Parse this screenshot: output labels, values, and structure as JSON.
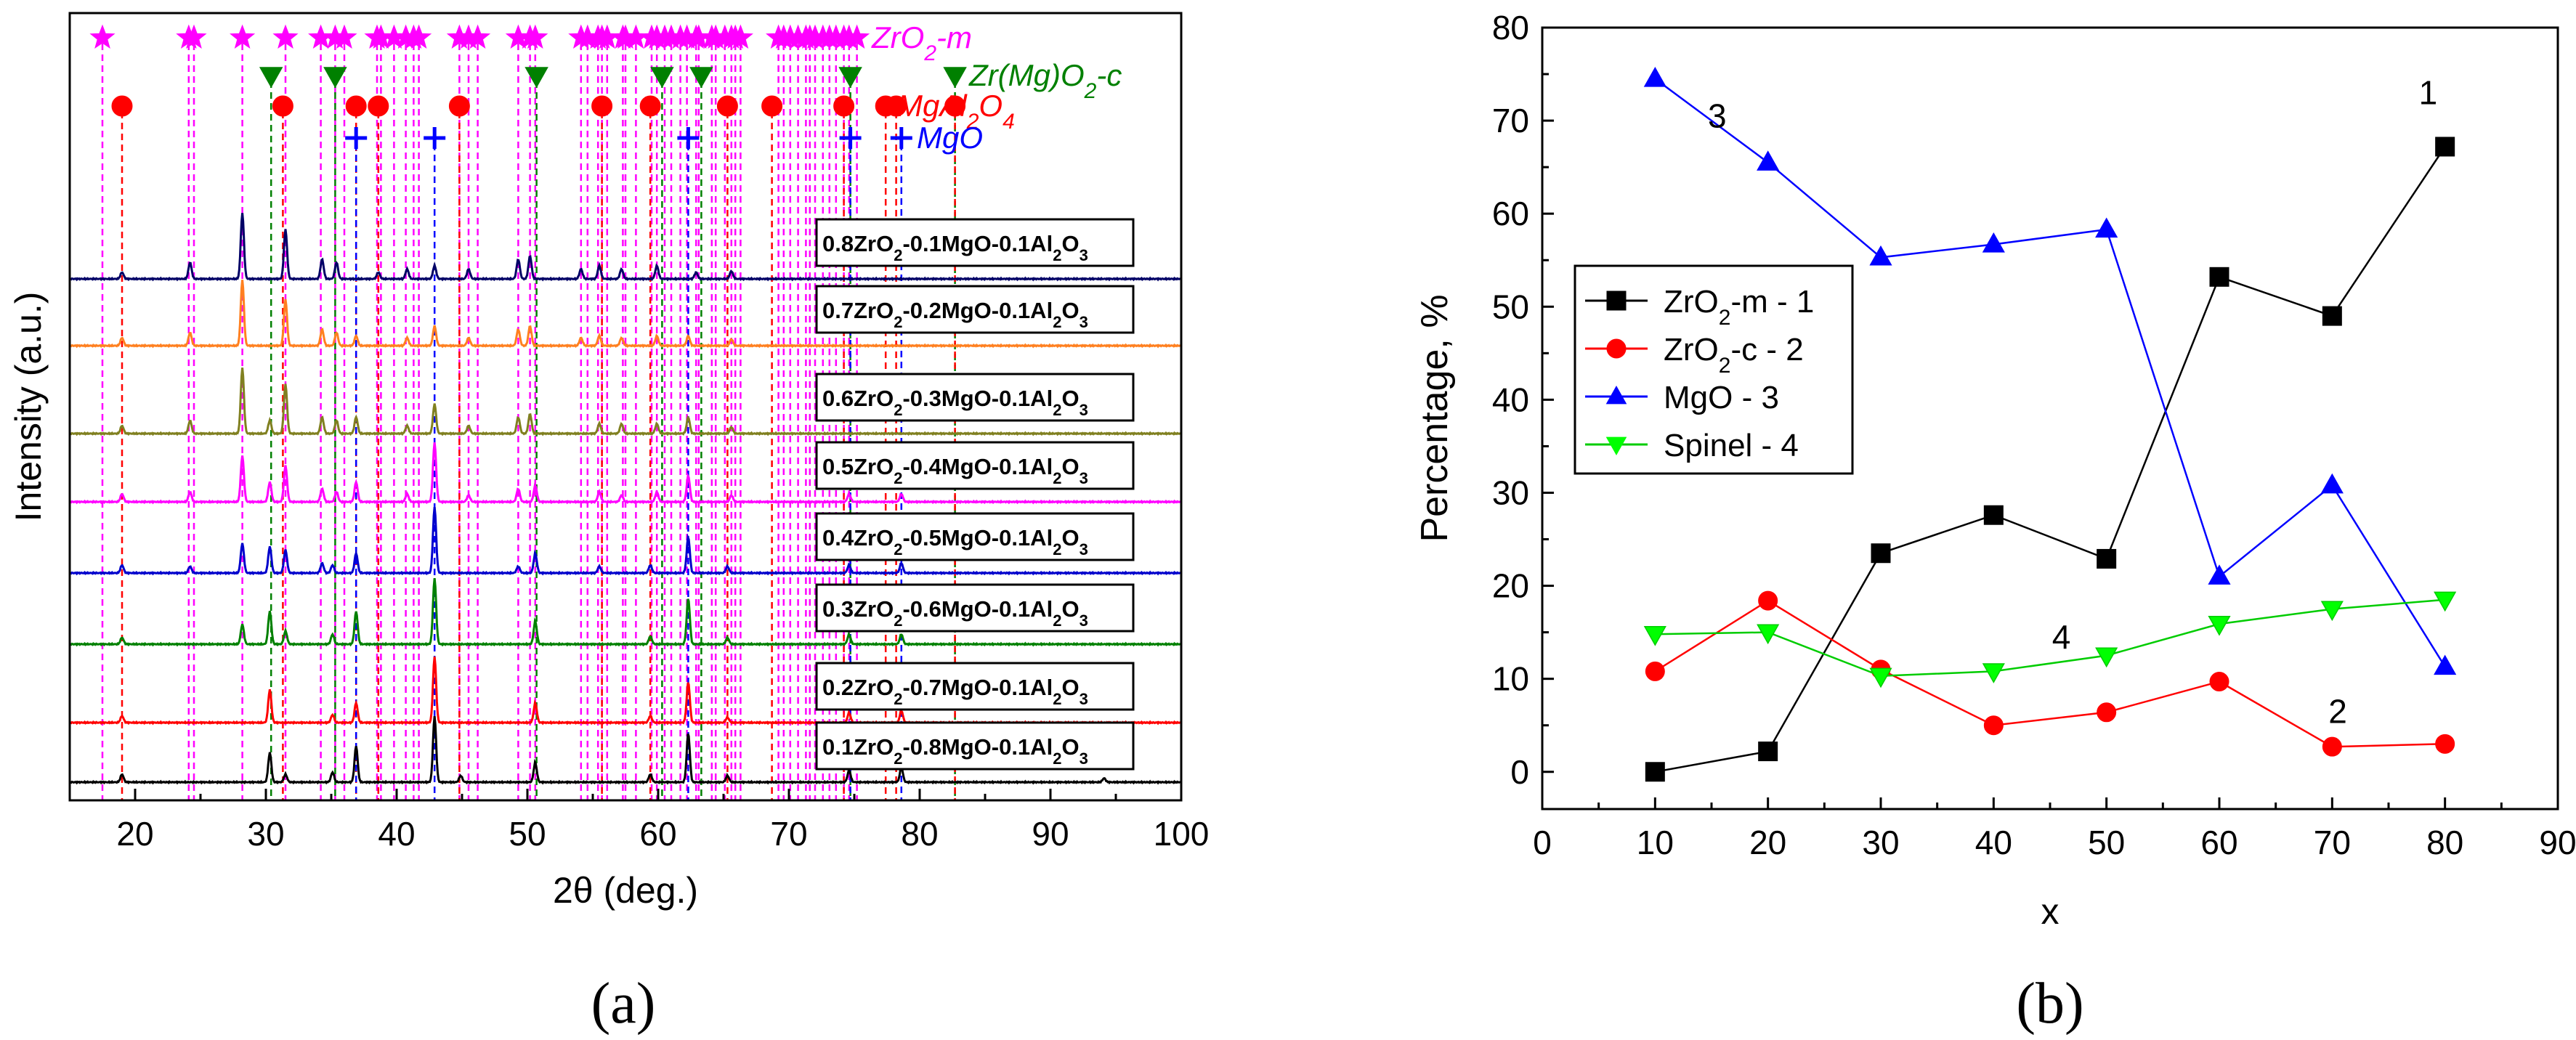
{
  "panel_a_label": "(a)",
  "panel_b_label": "(b)",
  "chart_data": [
    {
      "type": "line",
      "title": "",
      "xlabel": "2θ (deg.)",
      "ylabel": "Intensity (a.u.)",
      "xlim": [
        15,
        100
      ],
      "xticks": [
        20,
        30,
        40,
        50,
        60,
        70,
        80,
        90,
        100
      ],
      "series": [
        {
          "name": "0.1ZrO2-0.8MgO-0.1Al2O3",
          "label_main": "0.1ZrO",
          "label_mid": "-0.8MgO-0.1Al",
          "color": "#000000",
          "peaks": [
            [
              19,
              0.12
            ],
            [
              30.3,
              0.45
            ],
            [
              31.5,
              0.12
            ],
            [
              35.1,
              0.15
            ],
            [
              36.9,
              0.55
            ],
            [
              42.9,
              1.0
            ],
            [
              44.9,
              0.1
            ],
            [
              50.6,
              0.3
            ],
            [
              59.4,
              0.12
            ],
            [
              62.3,
              0.75
            ],
            [
              65.3,
              0.1
            ],
            [
              74.6,
              0.18
            ],
            [
              78.6,
              0.22
            ],
            [
              94.1,
              0.06
            ]
          ]
        },
        {
          "name": "0.2ZrO2-0.7MgO-0.1Al2O3",
          "label_main": "0.2ZrO",
          "label_mid": "-0.7MgO-0.1Al",
          "color": "#ff0000",
          "peaks": [
            [
              19,
              0.1
            ],
            [
              30.3,
              0.5
            ],
            [
              35.1,
              0.12
            ],
            [
              36.9,
              0.3
            ],
            [
              42.9,
              1.0
            ],
            [
              50.6,
              0.3
            ],
            [
              59.4,
              0.1
            ],
            [
              62.3,
              0.62
            ],
            [
              65.3,
              0.08
            ],
            [
              74.6,
              0.15
            ],
            [
              78.6,
              0.18
            ]
          ]
        },
        {
          "name": "0.3ZrO2-0.6MgO-0.1Al2O3",
          "label_main": "0.3ZrO",
          "label_mid": "-0.6MgO-0.1Al",
          "color": "#008000",
          "peaks": [
            [
              19,
              0.1
            ],
            [
              28.2,
              0.3
            ],
            [
              30.3,
              0.5
            ],
            [
              31.5,
              0.2
            ],
            [
              35.1,
              0.15
            ],
            [
              36.9,
              0.5
            ],
            [
              42.9,
              1.0
            ],
            [
              50.6,
              0.35
            ],
            [
              59.4,
              0.12
            ],
            [
              62.3,
              0.7
            ],
            [
              65.3,
              0.1
            ],
            [
              74.6,
              0.15
            ],
            [
              78.6,
              0.15
            ]
          ]
        },
        {
          "name": "0.4ZrO2-0.5MgO-0.1Al2O3",
          "label_main": "0.4ZrO",
          "label_mid": "-0.5MgO-0.1Al",
          "color": "#0000cc",
          "peaks": [
            [
              19,
              0.12
            ],
            [
              24.2,
              0.1
            ],
            [
              28.2,
              0.45
            ],
            [
              30.3,
              0.4
            ],
            [
              31.5,
              0.35
            ],
            [
              34.3,
              0.15
            ],
            [
              35.1,
              0.12
            ],
            [
              36.9,
              0.3
            ],
            [
              42.9,
              1.0
            ],
            [
              49.3,
              0.1
            ],
            [
              50.6,
              0.3
            ],
            [
              55.5,
              0.1
            ],
            [
              59.4,
              0.12
            ],
            [
              62.3,
              0.55
            ],
            [
              65.3,
              0.1
            ],
            [
              74.6,
              0.12
            ],
            [
              78.6,
              0.15
            ]
          ]
        },
        {
          "name": "0.5ZrO2-0.4MgO-0.1Al2O3",
          "label_main": "0.5ZrO",
          "label_mid": "-0.4MgO-0.1Al",
          "color": "#ff00ff",
          "peaks": [
            [
              19,
              0.12
            ],
            [
              24.2,
              0.15
            ],
            [
              28.2,
              0.7
            ],
            [
              30.3,
              0.3
            ],
            [
              31.5,
              0.55
            ],
            [
              34.3,
              0.2
            ],
            [
              35.4,
              0.15
            ],
            [
              36.9,
              0.3
            ],
            [
              40.8,
              0.12
            ],
            [
              42.9,
              0.9
            ],
            [
              45.5,
              0.1
            ],
            [
              49.3,
              0.2
            ],
            [
              50.6,
              0.25
            ],
            [
              55.5,
              0.15
            ],
            [
              57.2,
              0.1
            ],
            [
              59.9,
              0.15
            ],
            [
              62.3,
              0.4
            ],
            [
              65.6,
              0.1
            ],
            [
              74.6,
              0.12
            ],
            [
              78.6,
              0.12
            ]
          ]
        },
        {
          "name": "0.6ZrO2-0.3MgO-0.1Al2O3",
          "label_main": "0.6ZrO",
          "label_mid": "-0.3MgO-0.1Al",
          "color": "#808020",
          "peaks": [
            [
              19,
              0.12
            ],
            [
              24.2,
              0.2
            ],
            [
              28.2,
              1.0
            ],
            [
              30.3,
              0.2
            ],
            [
              31.5,
              0.75
            ],
            [
              34.3,
              0.25
            ],
            [
              35.4,
              0.2
            ],
            [
              36.9,
              0.25
            ],
            [
              40.8,
              0.12
            ],
            [
              42.9,
              0.45
            ],
            [
              45.5,
              0.12
            ],
            [
              49.3,
              0.25
            ],
            [
              50.2,
              0.3
            ],
            [
              55.5,
              0.15
            ],
            [
              57.2,
              0.15
            ],
            [
              59.9,
              0.15
            ],
            [
              62.3,
              0.25
            ],
            [
              65.6,
              0.1
            ]
          ]
        },
        {
          "name": "0.7ZrO2-0.2MgO-0.1Al2O3",
          "label_main": "0.7ZrO",
          "label_mid": "-0.2MgO-0.1Al",
          "color": "#ff8020",
          "peaks": [
            [
              19,
              0.12
            ],
            [
              24.2,
              0.2
            ],
            [
              28.2,
              1.0
            ],
            [
              31.5,
              0.7
            ],
            [
              34.3,
              0.25
            ],
            [
              35.4,
              0.2
            ],
            [
              36.9,
              0.15
            ],
            [
              40.8,
              0.12
            ],
            [
              42.9,
              0.3
            ],
            [
              45.5,
              0.12
            ],
            [
              49.3,
              0.25
            ],
            [
              50.2,
              0.3
            ],
            [
              54.1,
              0.12
            ],
            [
              55.5,
              0.15
            ],
            [
              57.2,
              0.12
            ],
            [
              59.9,
              0.15
            ],
            [
              62.3,
              0.15
            ],
            [
              65.6,
              0.1
            ]
          ]
        },
        {
          "name": "0.8ZrO2-0.1MgO-0.1Al2O3",
          "label_main": "0.8ZrO",
          "label_mid": "-0.1MgO-0.1Al",
          "color": "#000066",
          "peaks": [
            [
              19,
              0.1
            ],
            [
              24.2,
              0.25
            ],
            [
              28.2,
              1.0
            ],
            [
              31.5,
              0.75
            ],
            [
              34.3,
              0.3
            ],
            [
              35.4,
              0.25
            ],
            [
              38.6,
              0.1
            ],
            [
              40.8,
              0.15
            ],
            [
              42.9,
              0.2
            ],
            [
              45.5,
              0.15
            ],
            [
              49.3,
              0.3
            ],
            [
              50.2,
              0.35
            ],
            [
              54.1,
              0.15
            ],
            [
              55.5,
              0.2
            ],
            [
              57.2,
              0.15
            ],
            [
              59.9,
              0.2
            ],
            [
              62.9,
              0.1
            ],
            [
              65.6,
              0.12
            ]
          ]
        }
      ],
      "references": [
        {
          "name": "ZrO2-m",
          "label_main": "ZrO",
          "label_sub": "2",
          "label_end": "-m",
          "color": "#ff00ff",
          "marker": "star",
          "positions": [
            17.5,
            24.1,
            24.5,
            28.2,
            31.5,
            34.2,
            35.3,
            36.0,
            38.5,
            38.8,
            39.8,
            40.7,
            41.3,
            41.7,
            44.8,
            45.5,
            46.2,
            49.3,
            50.2,
            50.6,
            54.1,
            54.6,
            55.4,
            55.7,
            56.1,
            57.3,
            57.5,
            58.3,
            59.5,
            59.9,
            60.5,
            61.0,
            61.7,
            62.2,
            62.9,
            63.1,
            64.1,
            64.4,
            65.1,
            65.6,
            65.9,
            66.3,
            69.2,
            69.6,
            70.1,
            70.7,
            71.3,
            71.6,
            72.0,
            72.6,
            73.1,
            73.6,
            74.2,
            74.6,
            75.2
          ]
        },
        {
          "name": "Zr(Mg)O2-c",
          "label_main": "Zr(Mg)O",
          "label_sub": "2",
          "label_end": "-c",
          "color": "#008000",
          "marker": "tri-down",
          "positions": [
            30.4,
            35.3,
            50.7,
            60.3,
            63.3,
            74.7,
            82.7
          ]
        },
        {
          "name": "MgAl2O4",
          "label_main": "MgAl",
          "label_sub": "2",
          "label_end": "O",
          "label_sub2": "4",
          "color": "#ff0000",
          "marker": "circle",
          "positions": [
            19.0,
            31.3,
            36.9,
            38.6,
            44.8,
            55.7,
            59.4,
            65.3,
            68.7,
            74.2,
            77.4,
            78.2,
            82.7
          ]
        },
        {
          "name": "MgO",
          "label_main": "MgO",
          "color": "#0000ff",
          "marker": "plus",
          "positions": [
            36.9,
            42.9,
            62.3,
            74.7,
            78.6
          ]
        }
      ]
    },
    {
      "type": "line",
      "title": "",
      "xlabel": "x",
      "ylabel": "Percentage, %",
      "xlim": [
        0,
        90
      ],
      "ylim": [
        -4,
        80
      ],
      "xticks": [
        0,
        10,
        20,
        30,
        40,
        50,
        60,
        70,
        80,
        90
      ],
      "yticks": [
        0,
        10,
        20,
        30,
        40,
        50,
        60,
        70,
        80
      ],
      "x": [
        10,
        20,
        30,
        40,
        50,
        60,
        70,
        80
      ],
      "series": [
        {
          "name": "ZrO2-m - 1",
          "label_main": "ZrO",
          "label_sub": "2",
          "label_end": "-m - 1",
          "color": "#000000",
          "line_color": "#000000",
          "marker": "square",
          "values": [
            0,
            2.2,
            23.5,
            27.6,
            22.9,
            53.2,
            49.0,
            67.2
          ]
        },
        {
          "name": "ZrO2-c - 2",
          "label_main": "ZrO",
          "label_sub": "2",
          "label_end": "-c - 2",
          "color": "#ff0000",
          "line_color": "#ff0000",
          "marker": "circle",
          "values": [
            10.8,
            18.4,
            11.0,
            5.0,
            6.4,
            9.7,
            2.7,
            3.0
          ]
        },
        {
          "name": "MgO - 3",
          "label_main": "MgO - 3",
          "color": "#0000ff",
          "line_color": "#0000ff",
          "marker": "triangle-up",
          "values": [
            74.5,
            65.5,
            55.3,
            56.7,
            58.3,
            21.0,
            30.8,
            11.3
          ]
        },
        {
          "name": "Spinel - 4",
          "label_main": "Spinel - 4",
          "color": "#00ff00",
          "line_color": "#00cc00",
          "marker": "triangle-down",
          "values": [
            14.8,
            15.0,
            10.3,
            10.8,
            12.5,
            15.9,
            17.5,
            18.5
          ]
        }
      ],
      "annotations": [
        {
          "text": "1",
          "x": 78.5,
          "y": 73
        },
        {
          "text": "2",
          "x": 70.5,
          "y": 6.5
        },
        {
          "text": "3",
          "x": 15.5,
          "y": 70.5
        },
        {
          "text": "4",
          "x": 46.0,
          "y": 14.5
        }
      ],
      "legend_position": "center-left"
    }
  ]
}
